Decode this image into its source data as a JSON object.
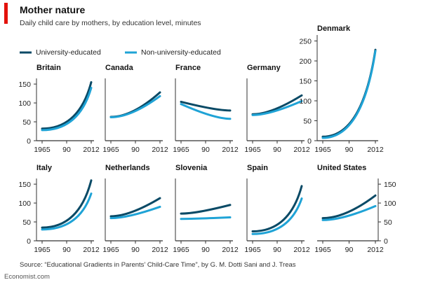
{
  "header": {
    "title": "Mother nature",
    "subtitle": "Daily child care by mothers, by education level, minutes"
  },
  "legend": {
    "placement": "top-left",
    "items": [
      {
        "label": "University-educated",
        "color": "#0a4a66"
      },
      {
        "label": "Non-university-educated",
        "color": "#1fa3d6"
      }
    ]
  },
  "footer": {
    "source": "Source: “Educational Gradients in Parents’ Child-Care Time”, by G. M. Dotti Sani and J. Treas",
    "brand": "Economist.com"
  },
  "colors": {
    "accent_bar": "#e3120b",
    "university": "#0a4a66",
    "non_university": "#1fa3d6",
    "axis": "#333333"
  },
  "chart_data": [
    {
      "type": "line",
      "title": "Britain",
      "x_ticks": [
        "1965",
        "90",
        "2012"
      ],
      "x": [
        1965,
        2012
      ],
      "y_ticks": [
        0,
        50,
        100,
        150
      ],
      "ylim": [
        0,
        165
      ],
      "series": [
        {
          "name": "University-educated",
          "values": [
            32,
            155
          ]
        },
        {
          "name": "Non-university-educated",
          "values": [
            28,
            140
          ]
        }
      ]
    },
    {
      "type": "line",
      "title": "Canada",
      "x_ticks": [
        "1965",
        "90",
        "2012"
      ],
      "x": [
        1965,
        2012
      ],
      "ylim": [
        0,
        165
      ],
      "series": [
        {
          "name": "University-educated",
          "values": [
            63,
            128
          ]
        },
        {
          "name": "Non-university-educated",
          "values": [
            62,
            118
          ]
        }
      ]
    },
    {
      "type": "line",
      "title": "France",
      "x_ticks": [
        "1965",
        "90",
        "2012"
      ],
      "x": [
        1965,
        2012
      ],
      "ylim": [
        0,
        165
      ],
      "series": [
        {
          "name": "University-educated",
          "values": [
            103,
            80
          ]
        },
        {
          "name": "Non-university-educated",
          "values": [
            97,
            58
          ]
        }
      ]
    },
    {
      "type": "line",
      "title": "Germany",
      "x_ticks": [
        "1965",
        "90",
        "2012"
      ],
      "x": [
        1965,
        2012
      ],
      "ylim": [
        0,
        165
      ],
      "series": [
        {
          "name": "University-educated",
          "values": [
            70,
            120
          ]
        },
        {
          "name": "Non-university-educated",
          "values": [
            68,
            105
          ]
        }
      ]
    },
    {
      "type": "line",
      "title": "Denmark",
      "x_ticks": [
        "1965",
        "90",
        "2012"
      ],
      "x": [
        1965,
        2012
      ],
      "y_ticks": [
        0,
        50,
        100,
        150,
        200,
        250
      ],
      "ylim": [
        0,
        265
      ],
      "series": [
        {
          "name": "University-educated",
          "values": [
            10,
            228
          ]
        },
        {
          "name": "Non-university-educated",
          "values": [
            7,
            225
          ]
        }
      ]
    },
    {
      "type": "line",
      "title": "Italy",
      "x_ticks": [
        "1965",
        "90",
        "2012"
      ],
      "x": [
        1965,
        2012
      ],
      "y_ticks": [
        0,
        50,
        100,
        150
      ],
      "ylim": [
        0,
        165
      ],
      "series": [
        {
          "name": "University-educated",
          "values": [
            35,
            160
          ]
        },
        {
          "name": "Non-university-educated",
          "values": [
            30,
            125
          ]
        }
      ]
    },
    {
      "type": "line",
      "title": "Netherlands",
      "x_ticks": [
        "1965",
        "90",
        "2012"
      ],
      "x": [
        1965,
        2012
      ],
      "ylim": [
        0,
        165
      ],
      "series": [
        {
          "name": "University-educated",
          "values": [
            65,
            113
          ]
        },
        {
          "name": "Non-university-educated",
          "values": [
            60,
            90
          ]
        }
      ]
    },
    {
      "type": "line",
      "title": "Slovenia",
      "x_ticks": [
        "1965",
        "90",
        "2012"
      ],
      "x": [
        1965,
        2012
      ],
      "ylim": [
        0,
        165
      ],
      "series": [
        {
          "name": "University-educated",
          "values": [
            72,
            95
          ]
        },
        {
          "name": "Non-university-educated",
          "values": [
            58,
            62
          ]
        }
      ]
    },
    {
      "type": "line",
      "title": "Spain",
      "x_ticks": [
        "1965",
        "90",
        "2012"
      ],
      "x": [
        1965,
        2012
      ],
      "ylim": [
        0,
        165
      ],
      "series": [
        {
          "name": "University-educated",
          "values": [
            25,
            145
          ]
        },
        {
          "name": "Non-university-educated",
          "values": [
            18,
            112
          ]
        }
      ]
    },
    {
      "type": "line",
      "title": "United States",
      "x_ticks": [
        "1965",
        "90",
        "2012"
      ],
      "x": [
        1965,
        2012
      ],
      "y_ticks": [
        0,
        50,
        100,
        150
      ],
      "y_ticks_side": "right",
      "ylim": [
        0,
        165
      ],
      "series": [
        {
          "name": "University-educated",
          "values": [
            60,
            120
          ]
        },
        {
          "name": "Non-university-educated",
          "values": [
            55,
            92
          ]
        }
      ]
    }
  ]
}
